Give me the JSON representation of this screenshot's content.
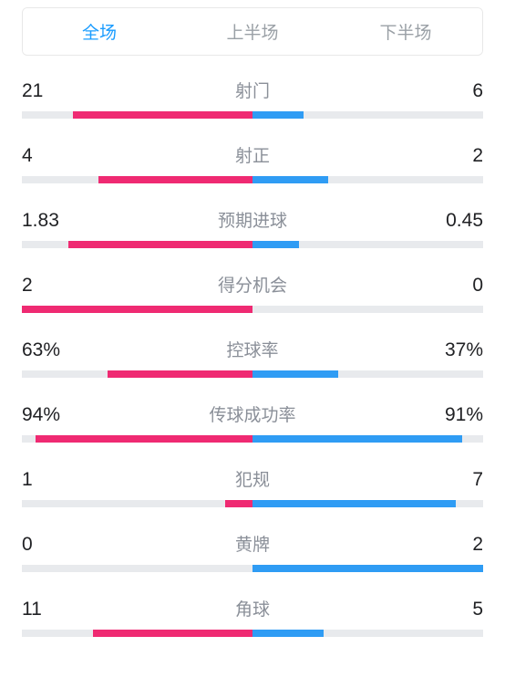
{
  "tabs": {
    "full": "全场",
    "first": "上半场",
    "second": "下半场",
    "active_index": 0
  },
  "colors": {
    "home": "#ef2a72",
    "away": "#2f9cf4",
    "track": "#e8eaed",
    "tab_active": "#1a9cff",
    "tab_inactive": "#9aa0a6",
    "label": "#8a8f98",
    "value": "#202124"
  },
  "stats": [
    {
      "label": "射门",
      "home": "21",
      "away": "6",
      "home_pct": 78,
      "away_pct": 22
    },
    {
      "label": "射正",
      "home": "4",
      "away": "2",
      "home_pct": 67,
      "away_pct": 33
    },
    {
      "label": "预期进球",
      "home": "1.83",
      "away": "0.45",
      "home_pct": 80,
      "away_pct": 20
    },
    {
      "label": "得分机会",
      "home": "2",
      "away": "0",
      "home_pct": 100,
      "away_pct": 0
    },
    {
      "label": "控球率",
      "home": "63%",
      "away": "37%",
      "home_pct": 63,
      "away_pct": 37
    },
    {
      "label": "传球成功率",
      "home": "94%",
      "away": "91%",
      "home_pct": 94,
      "away_pct": 91
    },
    {
      "label": "犯规",
      "home": "1",
      "away": "7",
      "home_pct": 12,
      "away_pct": 88
    },
    {
      "label": "黄牌",
      "home": "0",
      "away": "2",
      "home_pct": 0,
      "away_pct": 100
    },
    {
      "label": "角球",
      "home": "11",
      "away": "5",
      "home_pct": 69,
      "away_pct": 31
    }
  ]
}
